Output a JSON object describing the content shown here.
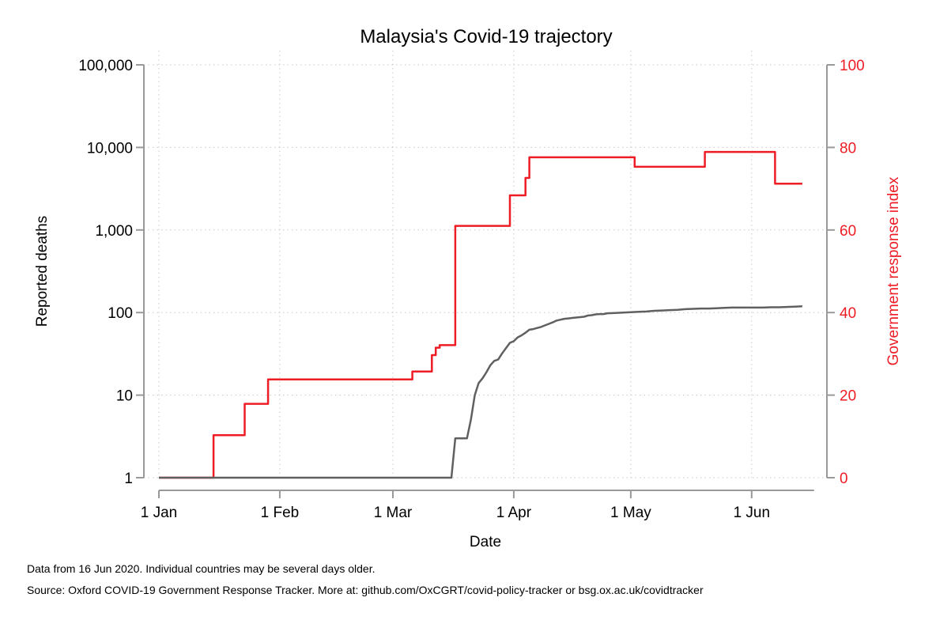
{
  "chart_data": {
    "type": "line",
    "title": "Malaysia's Covid-19 trajectory",
    "xlabel": "Date",
    "ylabel_left": "Reported deaths",
    "ylabel_right": "Government response index",
    "x_ticks": [
      "1 Jan",
      "1 Feb",
      "1 Mar",
      "1 Apr",
      "1 May",
      "1 Jun"
    ],
    "x_tick_days": [
      0,
      31,
      60,
      91,
      121,
      152
    ],
    "x_range_days": [
      0,
      168
    ],
    "y_left_scale": "log",
    "y_left_ticks": [
      1,
      10,
      100,
      1000,
      10000,
      100000
    ],
    "y_left_tick_labels": [
      "1",
      "10",
      "100",
      "1,000",
      "10,000",
      "100,000"
    ],
    "y_left_range": [
      1,
      100000
    ],
    "y_right_ticks": [
      0,
      20,
      40,
      60,
      80,
      100
    ],
    "y_right_tick_labels": [
      "0",
      "20",
      "40",
      "60",
      "80",
      "100"
    ],
    "y_right_range": [
      0,
      100
    ],
    "grid": true,
    "colors": {
      "deaths": "#606060",
      "response": "#ee1c25",
      "axis": "#999999"
    },
    "series": [
      {
        "axis": "right",
        "step": true,
        "points": [
          [
            0,
            0
          ],
          [
            14,
            0
          ],
          [
            14,
            10.3
          ],
          [
            22,
            10.3
          ],
          [
            22,
            17.9
          ],
          [
            28,
            17.9
          ],
          [
            28,
            23.8
          ],
          [
            65,
            23.8
          ],
          [
            65,
            25.7
          ],
          [
            70,
            25.7
          ],
          [
            70,
            29.7
          ],
          [
            71,
            29.7
          ],
          [
            71,
            31.5
          ],
          [
            72,
            31.5
          ],
          [
            72,
            32.1
          ],
          [
            76,
            32.1
          ],
          [
            76,
            61
          ],
          [
            90,
            61
          ],
          [
            90,
            68.4
          ],
          [
            94,
            68.4
          ],
          [
            94,
            72.6
          ],
          [
            95,
            72.6
          ],
          [
            95,
            77.6
          ],
          [
            97,
            77.6
          ],
          [
            122,
            77.6
          ],
          [
            122,
            75.3
          ],
          [
            140,
            75.3
          ],
          [
            140,
            78.9
          ],
          [
            158,
            78.9
          ],
          [
            158,
            71.2
          ],
          [
            165,
            71.2
          ]
        ]
      },
      {
        "axis": "left",
        "step": false,
        "points": [
          [
            0,
            1
          ],
          [
            75,
            1
          ],
          [
            76,
            3
          ],
          [
            79,
            3
          ],
          [
            80,
            5
          ],
          [
            81,
            10
          ],
          [
            82,
            14
          ],
          [
            83,
            16
          ],
          [
            84,
            19
          ],
          [
            85,
            23
          ],
          [
            86,
            26
          ],
          [
            87,
            27
          ],
          [
            88,
            32
          ],
          [
            89,
            37
          ],
          [
            90,
            43
          ],
          [
            91,
            45
          ],
          [
            92,
            50
          ],
          [
            93,
            53
          ],
          [
            94,
            57
          ],
          [
            95,
            62
          ],
          [
            96,
            63
          ],
          [
            97,
            65
          ],
          [
            98,
            67
          ],
          [
            99,
            70
          ],
          [
            100,
            73
          ],
          [
            101,
            76
          ],
          [
            102,
            80
          ],
          [
            103,
            82
          ],
          [
            104,
            84
          ],
          [
            105,
            85
          ],
          [
            106,
            86
          ],
          [
            107,
            87
          ],
          [
            108,
            88
          ],
          [
            109,
            89
          ],
          [
            110,
            92
          ],
          [
            111,
            93
          ],
          [
            112,
            95
          ],
          [
            113,
            96
          ],
          [
            114,
            96
          ],
          [
            115,
            98
          ],
          [
            117,
            99
          ],
          [
            119,
            100
          ],
          [
            121,
            101
          ],
          [
            123,
            102
          ],
          [
            125,
            103
          ],
          [
            127,
            105
          ],
          [
            129,
            106
          ],
          [
            131,
            107
          ],
          [
            133,
            108
          ],
          [
            135,
            110
          ],
          [
            137,
            111
          ],
          [
            139,
            112
          ],
          [
            141,
            112
          ],
          [
            143,
            113
          ],
          [
            145,
            114
          ],
          [
            147,
            115
          ],
          [
            150,
            115
          ],
          [
            153,
            115
          ],
          [
            155,
            115
          ],
          [
            157,
            116
          ],
          [
            159,
            116
          ],
          [
            161,
            117
          ],
          [
            163,
            118
          ],
          [
            165,
            119
          ]
        ]
      }
    ]
  },
  "footnotes": {
    "line1": "Data from 16 Jun 2020. Individual countries may be several days older.",
    "line2": "Source: Oxford COVID-19 Government Response Tracker. More at: github.com/OxCGRT/covid-policy-tracker or bsg.ox.ac.uk/covidtracker"
  }
}
